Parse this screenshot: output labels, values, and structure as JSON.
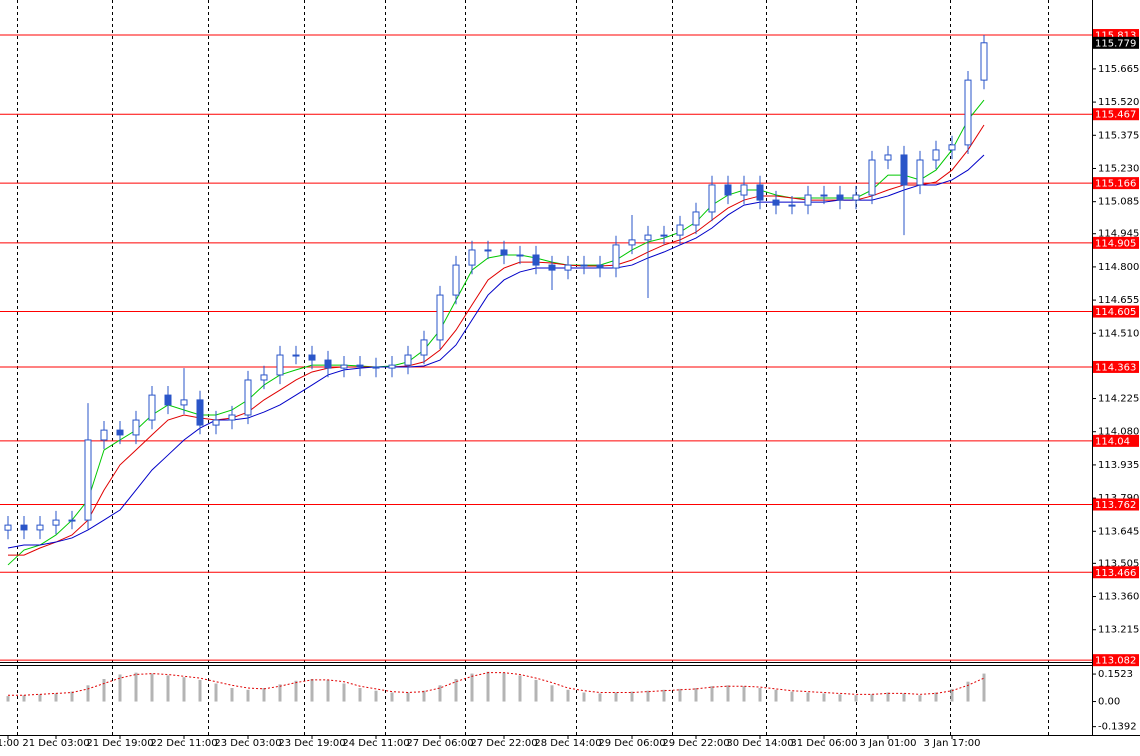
{
  "chart_data": {
    "type": "candlestick",
    "categories": [
      "1:00",
      null,
      null,
      "21 Dec 03:00",
      null,
      null,
      null,
      "21 Dec 19:00",
      null,
      null,
      null,
      "22 Dec 11:00",
      null,
      null,
      null,
      "23 Dec 03:00",
      null,
      null,
      null,
      "23 Dec 19:00",
      null,
      null,
      null,
      "24 Dec 11:00",
      null,
      null,
      null,
      "27 Dec 06:00",
      null,
      null,
      null,
      "27 Dec 22:00",
      null,
      null,
      null,
      "28 Dec 14:00",
      null,
      null,
      null,
      "29 Dec 06:00",
      null,
      null,
      null,
      "29 Dec 22:00",
      null,
      null,
      null,
      "30 Dec 14:00",
      null,
      null,
      null,
      "31 Dec 06:00",
      null,
      null,
      null,
      "3 Jan 01:00",
      null,
      null,
      null,
      "3 Jan 17:00",
      null,
      null
    ],
    "open": [
      113.65,
      113.672,
      113.651,
      113.672,
      113.694,
      113.694,
      114.044,
      114.087,
      114.066,
      114.131,
      114.24,
      114.197,
      114.219,
      114.109,
      114.131,
      114.153,
      114.306,
      114.328,
      114.415,
      114.415,
      114.393,
      114.358,
      114.371,
      114.363,
      114.358,
      114.371,
      114.415,
      114.481,
      114.677,
      114.808,
      114.874,
      114.874,
      114.852,
      114.852,
      114.808,
      114.786,
      114.808,
      114.808,
      114.795,
      114.896,
      114.918,
      114.939,
      114.939,
      114.983,
      115.04,
      115.158,
      115.114,
      115.158,
      115.092,
      115.07,
      115.07,
      115.114,
      115.114,
      115.092,
      115.114,
      115.267,
      115.289,
      115.158,
      115.267,
      115.311,
      115.333,
      115.616
    ],
    "high": [
      113.712,
      113.712,
      113.712,
      113.734,
      113.734,
      114.205,
      114.127,
      114.127,
      114.171,
      114.28,
      114.28,
      114.358,
      114.259,
      114.171,
      114.193,
      114.346,
      114.368,
      114.455,
      114.455,
      114.455,
      114.433,
      114.411,
      114.411,
      114.403,
      114.411,
      114.455,
      114.521,
      114.717,
      114.848,
      114.914,
      114.914,
      114.914,
      114.892,
      114.892,
      114.848,
      114.848,
      114.848,
      114.848,
      114.936,
      115.027,
      114.979,
      114.979,
      115.023,
      115.08,
      115.198,
      115.198,
      115.198,
      115.198,
      115.132,
      115.11,
      115.154,
      115.154,
      115.154,
      115.154,
      115.307,
      115.329,
      115.329,
      115.307,
      115.351,
      115.373,
      115.656,
      115.813
    ],
    "low": [
      113.61,
      113.611,
      113.611,
      113.632,
      113.654,
      113.654,
      114.004,
      114.026,
      114.026,
      114.091,
      114.157,
      114.157,
      114.069,
      114.069,
      114.091,
      114.113,
      114.266,
      114.288,
      114.375,
      114.353,
      114.318,
      114.318,
      114.323,
      114.318,
      114.318,
      114.331,
      114.375,
      114.441,
      114.637,
      114.768,
      114.834,
      114.812,
      114.812,
      114.768,
      114.699,
      114.746,
      114.768,
      114.755,
      114.755,
      114.856,
      114.664,
      114.899,
      114.899,
      114.943,
      115.0,
      115.074,
      115.074,
      115.052,
      115.03,
      115.03,
      115.03,
      115.074,
      115.052,
      115.052,
      115.074,
      115.227,
      114.939,
      115.118,
      115.227,
      115.271,
      115.293,
      115.576
    ],
    "close": [
      113.672,
      113.651,
      113.672,
      113.694,
      113.694,
      114.044,
      114.087,
      114.066,
      114.131,
      114.24,
      114.197,
      114.219,
      114.109,
      114.131,
      114.153,
      114.306,
      114.328,
      114.415,
      114.415,
      114.393,
      114.358,
      114.371,
      114.363,
      114.358,
      114.371,
      114.415,
      114.481,
      114.677,
      114.808,
      114.874,
      114.874,
      114.852,
      114.852,
      114.808,
      114.786,
      114.808,
      114.808,
      114.795,
      114.896,
      114.918,
      114.939,
      114.939,
      114.983,
      115.04,
      115.158,
      115.114,
      115.158,
      115.092,
      115.07,
      115.07,
      115.114,
      115.114,
      115.092,
      115.114,
      115.267,
      115.289,
      115.158,
      115.267,
      115.311,
      115.333,
      115.616,
      115.779
    ],
    "color": "#2a55c8",
    "moving_averages": [
      {
        "color": "#00c800",
        "values": [
          113.498,
          113.563,
          113.585,
          113.629,
          113.694,
          113.782,
          114.0,
          114.044,
          114.087,
          114.153,
          114.197,
          114.175,
          114.153,
          114.153,
          114.175,
          114.219,
          114.284,
          114.328,
          114.35,
          114.371,
          114.371,
          114.371,
          114.367,
          114.363,
          114.367,
          114.385,
          114.437,
          114.524,
          114.655,
          114.786,
          114.839,
          114.852,
          114.852,
          114.839,
          114.821,
          114.808,
          114.808,
          114.808,
          114.83,
          114.874,
          114.909,
          114.926,
          114.952,
          114.996,
          115.07,
          115.114,
          115.136,
          115.136,
          115.114,
          115.101,
          115.101,
          115.101,
          115.101,
          115.101,
          115.136,
          115.201,
          115.201,
          115.18,
          115.223,
          115.311,
          115.442,
          115.529
        ]
      },
      {
        "color": "#e00000",
        "values": [
          113.541,
          113.541,
          113.572,
          113.598,
          113.629,
          113.694,
          113.825,
          113.935,
          114.0,
          114.066,
          114.131,
          114.153,
          114.14,
          114.131,
          114.14,
          114.166,
          114.219,
          114.262,
          114.306,
          114.341,
          114.358,
          114.363,
          114.363,
          114.363,
          114.363,
          114.367,
          114.385,
          114.437,
          114.524,
          114.634,
          114.743,
          114.795,
          114.821,
          114.821,
          114.817,
          114.808,
          114.804,
          114.804,
          114.808,
          114.83,
          114.865,
          114.896,
          114.918,
          114.952,
          115.005,
          115.057,
          115.092,
          115.11,
          115.11,
          115.101,
          115.092,
          115.092,
          115.092,
          115.092,
          115.11,
          115.136,
          115.158,
          115.158,
          115.171,
          115.223,
          115.311,
          115.42
        ]
      },
      {
        "color": "#0000c8",
        "values": [
          113.572,
          113.585,
          113.585,
          113.598,
          113.616,
          113.651,
          113.694,
          113.738,
          113.825,
          113.913,
          113.978,
          114.044,
          114.096,
          114.131,
          114.131,
          114.14,
          114.166,
          114.197,
          114.24,
          114.284,
          114.328,
          114.35,
          114.358,
          114.363,
          114.363,
          114.363,
          114.367,
          114.393,
          114.459,
          114.568,
          114.677,
          114.743,
          114.778,
          114.795,
          114.795,
          114.795,
          114.795,
          114.795,
          114.795,
          114.808,
          114.839,
          114.865,
          114.896,
          114.926,
          114.97,
          115.027,
          115.07,
          115.083,
          115.083,
          115.083,
          115.083,
          115.083,
          115.092,
          115.092,
          115.092,
          115.11,
          115.136,
          115.158,
          115.158,
          115.18,
          115.223,
          115.289
        ]
      }
    ],
    "levels": [
      115.813,
      115.467,
      115.166,
      114.905,
      114.605,
      114.363,
      114.04,
      113.762,
      113.466,
      113.082
    ],
    "level_color": "#ff0000",
    "current_price": 115.779,
    "ylim": [
      113.074,
      115.966
    ],
    "yticks": [
      115.665,
      {
        "value": 115.52,
        "label": "115.520"
      },
      115.375,
      {
        "value": 115.23,
        "label": "115.230"
      },
      115.085,
      114.945,
      {
        "value": 114.8,
        "label": "114.800"
      },
      114.655,
      {
        "value": 114.51,
        "label": "114.510"
      },
      114.225,
      {
        "value": 114.08,
        "label": "114.080"
      },
      113.935,
      {
        "value": 113.79,
        "label": "113.790"
      },
      113.645,
      113.505,
      {
        "value": 113.36,
        "label": "113.360"
      },
      113.215
    ],
    "indicator": {
      "type": "bar",
      "color": "#b4b4b4",
      "values": [
        0.03,
        0.035,
        0.04,
        0.045,
        0.055,
        0.09,
        0.125,
        0.15,
        0.16,
        0.155,
        0.145,
        0.135,
        0.12,
        0.1,
        0.075,
        0.065,
        0.075,
        0.095,
        0.115,
        0.125,
        0.12,
        0.1,
        0.075,
        0.06,
        0.05,
        0.05,
        0.06,
        0.09,
        0.125,
        0.155,
        0.165,
        0.16,
        0.145,
        0.12,
        0.09,
        0.065,
        0.05,
        0.045,
        0.05,
        0.055,
        0.06,
        0.065,
        0.07,
        0.075,
        0.085,
        0.09,
        0.085,
        0.075,
        0.065,
        0.055,
        0.05,
        0.045,
        0.04,
        0.035,
        0.04,
        0.05,
        0.045,
        0.035,
        0.05,
        0.07,
        0.11,
        0.155
      ],
      "signal_color": "#e00000",
      "signal": [
        0.035,
        0.035,
        0.04,
        0.045,
        0.05,
        0.07,
        0.1,
        0.13,
        0.15,
        0.155,
        0.15,
        0.14,
        0.13,
        0.11,
        0.09,
        0.075,
        0.07,
        0.085,
        0.105,
        0.12,
        0.12,
        0.11,
        0.085,
        0.07,
        0.055,
        0.05,
        0.055,
        0.075,
        0.11,
        0.14,
        0.16,
        0.16,
        0.15,
        0.13,
        0.105,
        0.075,
        0.06,
        0.05,
        0.05,
        0.05,
        0.055,
        0.06,
        0.065,
        0.07,
        0.08,
        0.085,
        0.085,
        0.08,
        0.07,
        0.06,
        0.055,
        0.05,
        0.045,
        0.04,
        0.04,
        0.045,
        0.045,
        0.04,
        0.045,
        0.06,
        0.09,
        0.13
      ],
      "ylim": [
        -0.18,
        0.197
      ],
      "yticks": [
        0.1523,
        {
          "value": 0,
          "label": "0.00"
        },
        -0.1392
      ]
    }
  }
}
